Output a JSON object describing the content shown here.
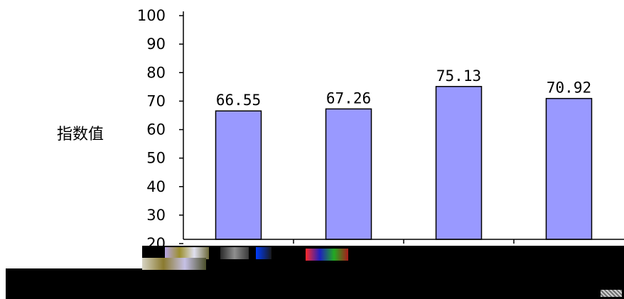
{
  "chart_data": {
    "type": "bar",
    "title": "",
    "xlabel": "",
    "ylabel": "指数值",
    "ylim": [
      20,
      100
    ],
    "yticks": [
      20,
      30,
      40,
      50,
      60,
      70,
      80,
      90,
      100
    ],
    "grid": false,
    "categories": [
      "",
      "",
      "",
      ""
    ],
    "values": [
      66.55,
      67.26,
      75.13,
      70.92
    ],
    "data_labels": [
      "66.55",
      "67.26",
      "75.13",
      "70.92"
    ],
    "bar_color": "#9999ff"
  }
}
